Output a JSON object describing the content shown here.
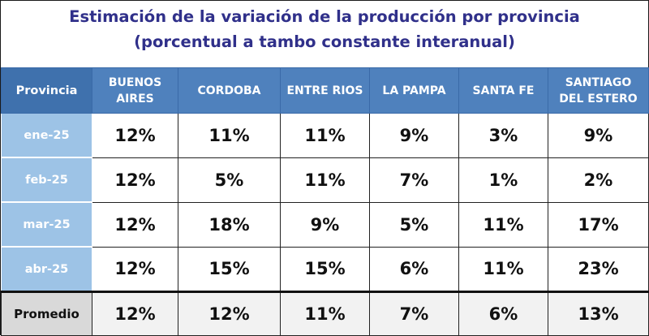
{
  "title_line1": "Estimación de la variación de la producción por provincia",
  "title_line2": "(porcentual a tambo constante interanual)",
  "chart_data": {
    "type": "table",
    "title": "Estimación de la variación de la producción por provincia",
    "subtitle": "(porcentual a tambo constante interanual)",
    "row_header": "Provincia",
    "columns": [
      [
        "BUENOS",
        "AIRES"
      ],
      [
        "CORDOBA"
      ],
      [
        "ENTRE RIOS"
      ],
      [
        "LA PAMPA"
      ],
      [
        "SANTA FE"
      ],
      [
        "SANTIAGO",
        "DEL ESTERO"
      ]
    ],
    "rows": [
      {
        "label": "ene-25",
        "values": [
          "12%",
          "11%",
          "11%",
          "9%",
          "3%",
          "9%"
        ]
      },
      {
        "label": "feb-25",
        "values": [
          "12%",
          "5%",
          "11%",
          "7%",
          "1%",
          "2%"
        ]
      },
      {
        "label": "mar-25",
        "values": [
          "12%",
          "18%",
          "9%",
          "5%",
          "11%",
          "17%"
        ]
      },
      {
        "label": "abr-25",
        "values": [
          "12%",
          "15%",
          "15%",
          "6%",
          "11%",
          "23%"
        ]
      }
    ],
    "average": {
      "label": "Promedio",
      "values": [
        "12%",
        "12%",
        "11%",
        "7%",
        "6%",
        "13%"
      ]
    },
    "colors": {
      "header": "#4f81bd",
      "row_label": "#9dc3e6",
      "title": "#30308a"
    }
  }
}
